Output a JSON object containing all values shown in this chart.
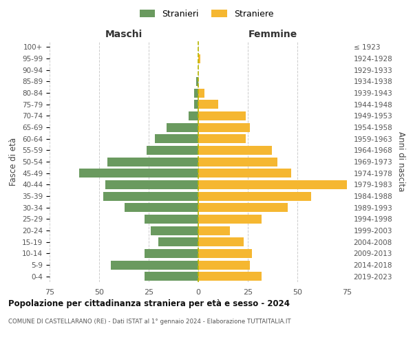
{
  "age_groups": [
    "0-4",
    "5-9",
    "10-14",
    "15-19",
    "20-24",
    "25-29",
    "30-34",
    "35-39",
    "40-44",
    "45-49",
    "50-54",
    "55-59",
    "60-64",
    "65-69",
    "70-74",
    "75-79",
    "80-84",
    "85-89",
    "90-94",
    "95-99",
    "100+"
  ],
  "birth_years": [
    "2019-2023",
    "2014-2018",
    "2009-2013",
    "2004-2008",
    "1999-2003",
    "1994-1998",
    "1989-1993",
    "1984-1988",
    "1979-1983",
    "1974-1978",
    "1969-1973",
    "1964-1968",
    "1959-1963",
    "1954-1958",
    "1949-1953",
    "1944-1948",
    "1939-1943",
    "1934-1938",
    "1929-1933",
    "1924-1928",
    "≤ 1923"
  ],
  "males": [
    27,
    44,
    27,
    20,
    24,
    27,
    37,
    48,
    47,
    60,
    46,
    26,
    22,
    16,
    5,
    2,
    2,
    1,
    0,
    0,
    0
  ],
  "females": [
    32,
    26,
    27,
    23,
    16,
    32,
    45,
    57,
    75,
    47,
    40,
    37,
    24,
    26,
    24,
    10,
    3,
    0,
    0,
    1,
    0
  ],
  "male_color": "#6a9a5f",
  "female_color": "#f5b731",
  "dashed_line_color": "#b8b800",
  "title": "Popolazione per cittadinanza straniera per età e sesso - 2024",
  "subtitle": "COMUNE DI CASTELLARANO (RE) - Dati ISTAT al 1° gennaio 2024 - Elaborazione TUTTAITALIA.IT",
  "xlabel_left": "Maschi",
  "xlabel_right": "Femmine",
  "ylabel_left": "Fasce di età",
  "ylabel_right": "Anni di nascita",
  "legend_male": "Stranieri",
  "legend_female": "Straniere",
  "xlim": 75,
  "background_color": "#ffffff",
  "grid_color": "#cccccc"
}
